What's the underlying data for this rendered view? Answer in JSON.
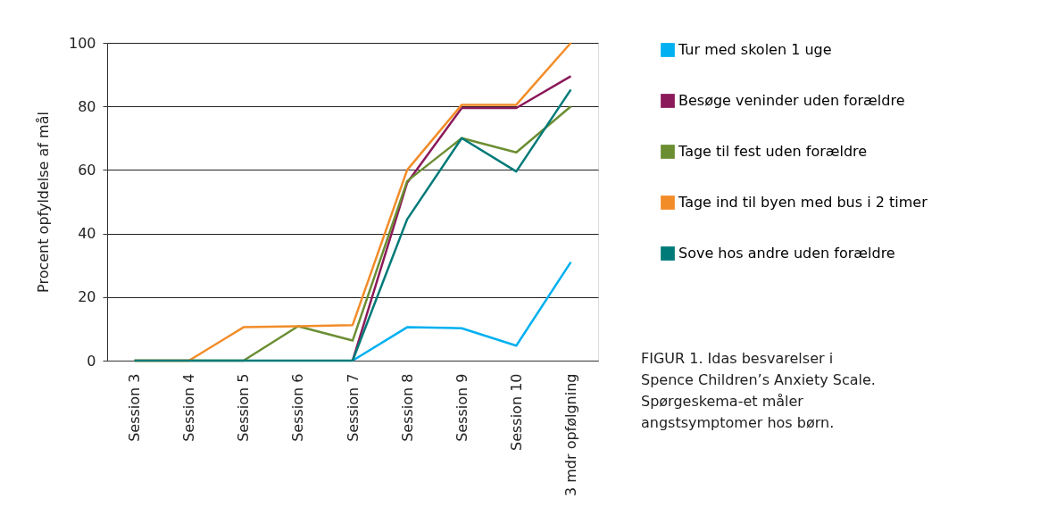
{
  "chart_data": {
    "type": "line",
    "ylabel": "Procent opfyldelse af mål",
    "categories": [
      "Session 3",
      "Session 4",
      "Session 5",
      "Session 6",
      "Session 7",
      "Session 8",
      "Session 9",
      "Session 10",
      "3 mdr opfølgning"
    ],
    "series": [
      {
        "name": "Tur med skolen 1 uge",
        "color": "#00b0f0",
        "values": [
          null,
          null,
          null,
          null,
          0,
          10.5,
          10.2,
          4.7,
          31
        ]
      },
      {
        "name": "Besøge veninder uden forældre",
        "color": "#8b1a5a",
        "values": [
          null,
          null,
          null,
          null,
          0,
          56,
          79.5,
          79.5,
          89.5
        ]
      },
      {
        "name": "Tage til fest uden forældre",
        "color": "#6b8e33",
        "values": [
          0,
          0,
          0,
          10.8,
          6.3,
          56.5,
          70,
          65.5,
          80
        ]
      },
      {
        "name": "Tage ind til byen med bus i 2 timer",
        "color": "#f28c28",
        "values": [
          0,
          0,
          10.5,
          10.8,
          11.2,
          60,
          80.5,
          80.5,
          100
        ]
      },
      {
        "name": "Sove hos andre uden forældre",
        "color": "#007a78",
        "values": [
          0,
          0,
          0,
          0,
          0,
          44.5,
          70,
          59.5,
          85.3
        ]
      }
    ],
    "ylim": [
      0,
      100
    ],
    "yticks": [
      0,
      20,
      40,
      60,
      80,
      100
    ],
    "grid": "y",
    "legend": "right",
    "marker": "none",
    "line_style": "solid",
    "annotations": [
      "FIGUR 1. Idas besvarelser i Spence Children’s Anxiety Scale. Spørgeskema-et måler angstsymptomer hos børn."
    ]
  }
}
